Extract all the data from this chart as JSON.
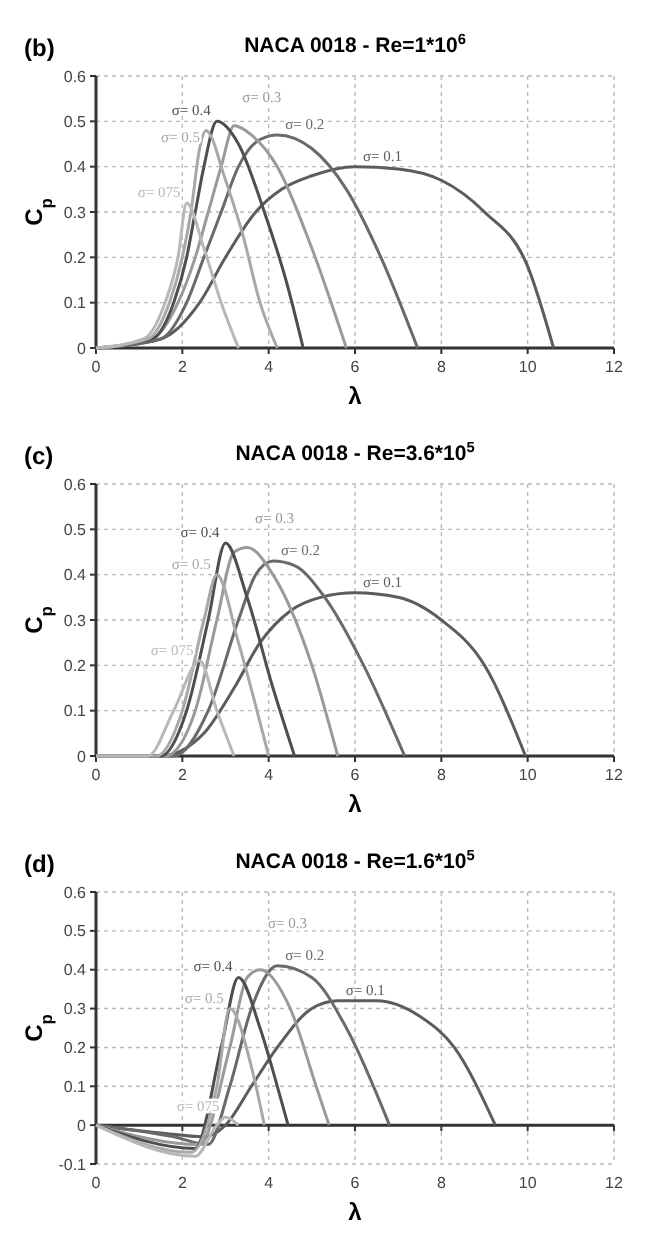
{
  "chart_data": [
    {
      "type": "line",
      "title": "NACA 0018 - Re=1*10$^{6}$",
      "xlabel": "λ",
      "ylabel": "C$_{p}$",
      "annotations": [
        "(b)"
      ],
      "xlim": [
        0,
        12
      ],
      "xticks": [
        0,
        2,
        4,
        6,
        8,
        10,
        12
      ],
      "ylim": [
        0,
        0.6
      ],
      "yticks": [
        0,
        0.1,
        0.2,
        0.3,
        0.4,
        0.5,
        0.6
      ],
      "grid": true,
      "line_style": "solid",
      "marker": "none",
      "series": [
        {
          "name": "σ= 0.1",
          "color": "#5c5c5c",
          "x": [
            0,
            1.5,
            2.4,
            3,
            3.7,
            4.3,
            5,
            6,
            7,
            8,
            9,
            10,
            10.6
          ],
          "values": [
            0,
            0.02,
            0.1,
            0.2,
            0.3,
            0.35,
            0.38,
            0.4,
            0.395,
            0.37,
            0.3,
            0.18,
            0
          ]
        },
        {
          "name": "σ= 0.2",
          "color": "#6a6a6a",
          "x": [
            0,
            1.5,
            2.1,
            2.5,
            2.9,
            3.3,
            3.8,
            4.2,
            5,
            5.8,
            6.6,
            7.45
          ],
          "values": [
            0,
            0.02,
            0.1,
            0.2,
            0.3,
            0.4,
            0.46,
            0.47,
            0.44,
            0.35,
            0.2,
            0
          ]
        },
        {
          "name": "σ= 0.3",
          "color": "#9a9a9a",
          "x": [
            0,
            1.3,
            1.9,
            2.3,
            2.6,
            2.9,
            3.2,
            3.6,
            4.2,
            5,
            5.8
          ],
          "values": [
            0,
            0.02,
            0.1,
            0.2,
            0.3,
            0.4,
            0.49,
            0.47,
            0.4,
            0.22,
            0
          ]
        },
        {
          "name": "σ= 0.4",
          "color": "#4e4e4e",
          "x": [
            0,
            1.3,
            1.8,
            2.1,
            2.3,
            2.5,
            2.8,
            3.3,
            3.9,
            4.4,
            4.8
          ],
          "values": [
            0,
            0.02,
            0.1,
            0.2,
            0.3,
            0.4,
            0.5,
            0.45,
            0.3,
            0.15,
            0
          ]
        },
        {
          "name": "σ= 0.5",
          "color": "#a8a8a8",
          "x": [
            0,
            1.2,
            1.7,
            2,
            2.2,
            2.4,
            2.55,
            2.7,
            2.9,
            3.4,
            3.8,
            4.2
          ],
          "values": [
            0,
            0.02,
            0.1,
            0.2,
            0.3,
            0.44,
            0.48,
            0.46,
            0.4,
            0.25,
            0.1,
            0
          ]
        },
        {
          "name": "σ= 075",
          "color": "#b8b8b8",
          "x": [
            0,
            1.1,
            1.6,
            1.9,
            2.1,
            2.5,
            2.9,
            3.3
          ],
          "values": [
            0,
            0.02,
            0.1,
            0.2,
            0.32,
            0.22,
            0.1,
            0
          ]
        }
      ]
    },
    {
      "type": "line",
      "title": "NACA 0018 - Re=3.6*10$^{5}$",
      "xlabel": "λ",
      "ylabel": "C$_{p}$",
      "annotations": [
        "(c)"
      ],
      "xlim": [
        0,
        12
      ],
      "xticks": [
        0,
        2,
        4,
        6,
        8,
        10,
        12
      ],
      "ylim": [
        0,
        0.6
      ],
      "yticks": [
        0,
        0.1,
        0.2,
        0.3,
        0.4,
        0.5,
        0.6
      ],
      "grid": true,
      "line_style": "solid",
      "marker": "none",
      "series": [
        {
          "name": "σ= 0.1",
          "color": "#5c5c5c",
          "x": [
            0,
            1.5,
            2.5,
            3.2,
            3.8,
            4.5,
            5.2,
            6,
            7,
            8,
            9,
            9.95
          ],
          "values": [
            0,
            0,
            0.05,
            0.15,
            0.25,
            0.32,
            0.35,
            0.36,
            0.35,
            0.3,
            0.2,
            0
          ]
        },
        {
          "name": "σ= 0.2",
          "color": "#6a6a6a",
          "x": [
            0,
            1.8,
            2.6,
            3.3,
            3.7,
            4.1,
            4.6,
            5.3,
            6.2,
            7.15
          ],
          "values": [
            0,
            0,
            0.1,
            0.3,
            0.4,
            0.43,
            0.42,
            0.35,
            0.2,
            0
          ]
        },
        {
          "name": "σ= 0.3",
          "color": "#9a9a9a",
          "x": [
            0,
            1.6,
            2.3,
            2.8,
            3.2,
            3.5,
            4.1,
            5,
            5.6
          ],
          "values": [
            0,
            0,
            0.1,
            0.3,
            0.45,
            0.46,
            0.4,
            0.2,
            0
          ]
        },
        {
          "name": "σ= 0.4",
          "color": "#4e4e4e",
          "x": [
            0,
            1.5,
            2.1,
            2.6,
            3,
            3.5,
            4.1,
            4.6
          ],
          "values": [
            0,
            0,
            0.1,
            0.3,
            0.47,
            0.35,
            0.15,
            0
          ]
        },
        {
          "name": "σ= 0.5",
          "color": "#a8a8a8",
          "x": [
            0,
            1.4,
            2,
            2.5,
            2.8,
            3.3,
            4
          ],
          "values": [
            0,
            0,
            0.1,
            0.3,
            0.4,
            0.25,
            0
          ]
        },
        {
          "name": "σ= 075",
          "color": "#b8b8b8",
          "x": [
            0,
            1.2,
            1.8,
            2.4,
            2.8,
            3.2
          ],
          "values": [
            0,
            0,
            0.1,
            0.21,
            0.1,
            0
          ]
        }
      ]
    },
    {
      "type": "line",
      "title": "NACA 0018 - Re=1.6*10$^{5}$",
      "xlabel": "λ",
      "ylabel": "C$_{p}$",
      "annotations": [
        "(d)"
      ],
      "xlim": [
        0,
        12
      ],
      "xticks": [
        0,
        2,
        4,
        6,
        8,
        10,
        12
      ],
      "ylim": [
        -0.1,
        0.6
      ],
      "yticks": [
        -0.1,
        0,
        0.1,
        0.2,
        0.3,
        0.4,
        0.5,
        0.6
      ],
      "grid": true,
      "line_style": "solid",
      "marker": "none",
      "series": [
        {
          "name": "σ= 0.1",
          "color": "#5c5c5c",
          "x": [
            0,
            1.5,
            2.5,
            3,
            3.6,
            4.2,
            5,
            5.6,
            6.5,
            7.5,
            8.3,
            9.25
          ],
          "values": [
            0,
            -0.02,
            -0.03,
            0,
            0.1,
            0.2,
            0.3,
            0.32,
            0.32,
            0.28,
            0.2,
            0
          ]
        },
        {
          "name": "σ= 0.2",
          "color": "#6a6a6a",
          "x": [
            0,
            1.8,
            2.6,
            3.1,
            3.6,
            4.2,
            5,
            5.8,
            6.8
          ],
          "values": [
            0,
            -0.03,
            -0.05,
            0.1,
            0.3,
            0.41,
            0.38,
            0.25,
            0
          ]
        },
        {
          "name": "σ= 0.3",
          "color": "#9a9a9a",
          "x": [
            0,
            2.4,
            3.1,
            3.5,
            3.8,
            4.5,
            5.1,
            5.4
          ],
          "values": [
            0,
            -0.05,
            0.2,
            0.38,
            0.4,
            0.3,
            0.1,
            0
          ]
        },
        {
          "name": "σ= 0.4",
          "color": "#4e4e4e",
          "x": [
            0,
            2.3,
            2.9,
            3.3,
            3.8,
            4.2,
            4.45
          ],
          "values": [
            0,
            -0.06,
            0.2,
            0.38,
            0.25,
            0.1,
            0
          ]
        },
        {
          "name": "σ= 0.5",
          "color": "#a8a8a8",
          "x": [
            0,
            2.2,
            2.8,
            3.1,
            3.6,
            3.9
          ],
          "values": [
            0,
            -0.07,
            0.1,
            0.3,
            0.15,
            0
          ]
        },
        {
          "name": "σ= 075",
          "color": "#b8b8b8",
          "x": [
            0,
            2.3,
            2.8,
            3,
            3.3
          ],
          "values": [
            0,
            -0.08,
            0,
            0.02,
            0
          ]
        }
      ]
    }
  ]
}
